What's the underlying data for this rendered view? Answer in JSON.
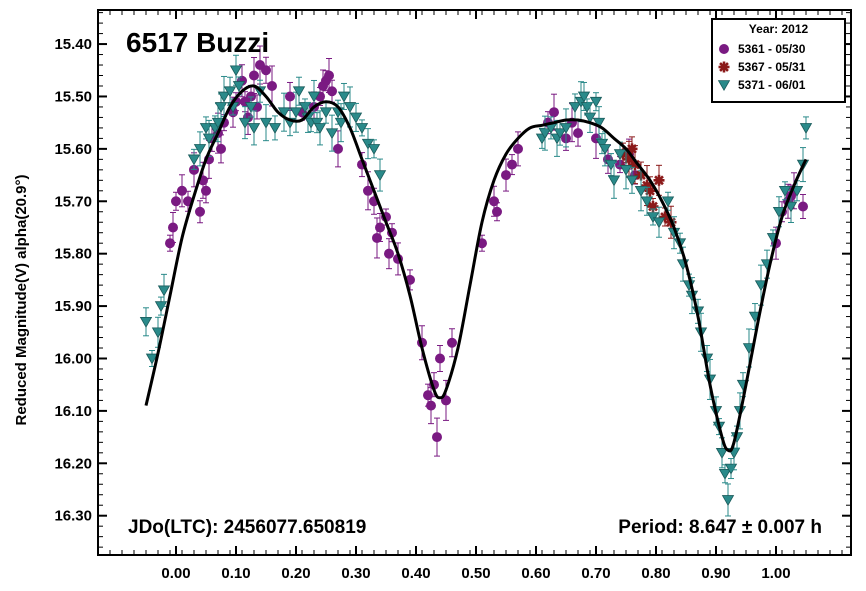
{
  "chart_data": {
    "type": "scatter",
    "title": "6517 Buzzi",
    "ylabel": "Reduced Magnitude(V) alpha(20.9°)",
    "xlabel": "",
    "xlim": [
      -0.13,
      1.125
    ],
    "ylim": [
      16.375,
      15.335
    ],
    "y_inverted": true,
    "grid": false,
    "x_ticks": [
      "0.00",
      "0.10",
      "0.20",
      "0.30",
      "0.40",
      "0.50",
      "0.60",
      "0.70",
      "0.80",
      "0.90",
      "1.00"
    ],
    "y_ticks": [
      "15.40",
      "15.50",
      "15.60",
      "15.70",
      "15.80",
      "15.90",
      "16.00",
      "16.10",
      "16.20",
      "16.30"
    ],
    "annotations": {
      "jdo": "JDo(LTC): 2456077.650819",
      "period": "Period: 8.647 ± 0.007 h"
    },
    "legend": {
      "placement": "top-right",
      "title": "Year: 2012",
      "entries": [
        {
          "label": "5361 - 05/30",
          "marker": "circle",
          "color": "#7a1a82"
        },
        {
          "label": "5367 - 05/31",
          "marker": "asterisk",
          "color": "#8b1a1a"
        },
        {
          "label": "5371 - 06/01",
          "marker": "triangle-down",
          "color": "#2a8a8a"
        }
      ]
    },
    "fit_curve": {
      "color": "#000000",
      "points": [
        [
          -0.05,
          16.09
        ],
        [
          -0.03,
          15.99
        ],
        [
          -0.01,
          15.88
        ],
        [
          0.01,
          15.77
        ],
        [
          0.03,
          15.69
        ],
        [
          0.05,
          15.62
        ],
        [
          0.07,
          15.57
        ],
        [
          0.09,
          15.52
        ],
        [
          0.11,
          15.49
        ],
        [
          0.13,
          15.48
        ],
        [
          0.15,
          15.5
        ],
        [
          0.17,
          15.53
        ],
        [
          0.19,
          15.545
        ],
        [
          0.21,
          15.545
        ],
        [
          0.23,
          15.52
        ],
        [
          0.25,
          15.51
        ],
        [
          0.27,
          15.52
        ],
        [
          0.29,
          15.56
        ],
        [
          0.31,
          15.62
        ],
        [
          0.33,
          15.68
        ],
        [
          0.35,
          15.74
        ],
        [
          0.37,
          15.8
        ],
        [
          0.39,
          15.88
        ],
        [
          0.41,
          15.98
        ],
        [
          0.43,
          16.06
        ],
        [
          0.44,
          16.075
        ],
        [
          0.45,
          16.06
        ],
        [
          0.47,
          15.98
        ],
        [
          0.49,
          15.86
        ],
        [
          0.51,
          15.74
        ],
        [
          0.53,
          15.66
        ],
        [
          0.55,
          15.61
        ],
        [
          0.57,
          15.58
        ],
        [
          0.59,
          15.56
        ],
        [
          0.61,
          15.555
        ],
        [
          0.63,
          15.55
        ],
        [
          0.65,
          15.545
        ],
        [
          0.67,
          15.545
        ],
        [
          0.69,
          15.55
        ],
        [
          0.71,
          15.56
        ],
        [
          0.73,
          15.58
        ],
        [
          0.75,
          15.6
        ],
        [
          0.77,
          15.63
        ],
        [
          0.79,
          15.66
        ],
        [
          0.81,
          15.7
        ],
        [
          0.83,
          15.75
        ],
        [
          0.85,
          15.82
        ],
        [
          0.87,
          15.92
        ],
        [
          0.89,
          16.05
        ],
        [
          0.91,
          16.15
        ],
        [
          0.92,
          16.175
        ],
        [
          0.93,
          16.16
        ],
        [
          0.95,
          16.05
        ],
        [
          0.97,
          15.93
        ],
        [
          0.99,
          15.82
        ],
        [
          1.01,
          15.73
        ],
        [
          1.03,
          15.67
        ],
        [
          1.05,
          15.62
        ]
      ]
    },
    "series": [
      {
        "name": "5361 - 05/30",
        "marker": "circle",
        "color": "#7a1a82",
        "points": [
          [
            -0.01,
            15.78
          ],
          [
            -0.005,
            15.75
          ],
          [
            0.0,
            15.7
          ],
          [
            0.01,
            15.68
          ],
          [
            0.02,
            15.7
          ],
          [
            0.03,
            15.64
          ],
          [
            0.04,
            15.72
          ],
          [
            0.045,
            15.66
          ],
          [
            0.05,
            15.68
          ],
          [
            0.055,
            15.62
          ],
          [
            0.06,
            15.58
          ],
          [
            0.07,
            15.57
          ],
          [
            0.075,
            15.6
          ],
          [
            0.08,
            15.55
          ],
          [
            0.095,
            15.53
          ],
          [
            0.1,
            15.51
          ],
          [
            0.11,
            15.47
          ],
          [
            0.115,
            15.51
          ],
          [
            0.12,
            15.54
          ],
          [
            0.125,
            15.5
          ],
          [
            0.13,
            15.46
          ],
          [
            0.135,
            15.52
          ],
          [
            0.14,
            15.44
          ],
          [
            0.15,
            15.45
          ],
          [
            0.16,
            15.48
          ],
          [
            0.19,
            15.5
          ],
          [
            0.21,
            15.53
          ],
          [
            0.23,
            15.52
          ],
          [
            0.24,
            15.5
          ],
          [
            0.245,
            15.48
          ],
          [
            0.25,
            15.47
          ],
          [
            0.255,
            15.46
          ],
          [
            0.26,
            15.49
          ],
          [
            0.27,
            15.6
          ],
          [
            0.31,
            15.63
          ],
          [
            0.32,
            15.68
          ],
          [
            0.33,
            15.7
          ],
          [
            0.335,
            15.77
          ],
          [
            0.34,
            15.75
          ],
          [
            0.35,
            15.73
          ],
          [
            0.355,
            15.8
          ],
          [
            0.36,
            15.76
          ],
          [
            0.37,
            15.81
          ],
          [
            0.39,
            15.85
          ],
          [
            0.41,
            15.97
          ],
          [
            0.42,
            16.07
          ],
          [
            0.425,
            16.09
          ],
          [
            0.43,
            16.05
          ],
          [
            0.435,
            16.15
          ],
          [
            0.44,
            16.0
          ],
          [
            0.45,
            16.08
          ],
          [
            0.46,
            15.97
          ],
          [
            0.51,
            15.78
          ],
          [
            0.53,
            15.7
          ],
          [
            0.535,
            15.72
          ],
          [
            0.55,
            15.65
          ],
          [
            0.56,
            15.63
          ],
          [
            0.57,
            15.6
          ],
          [
            0.62,
            15.55
          ],
          [
            0.63,
            15.53
          ],
          [
            0.65,
            15.58
          ],
          [
            0.66,
            15.55
          ],
          [
            0.67,
            15.57
          ],
          [
            0.7,
            15.58
          ],
          [
            0.72,
            15.62
          ],
          [
            0.74,
            15.63
          ],
          [
            0.755,
            15.61
          ],
          [
            0.765,
            15.65
          ],
          [
            1.0,
            15.78
          ],
          [
            1.01,
            15.72
          ],
          [
            1.02,
            15.7
          ],
          [
            1.025,
            15.69
          ],
          [
            1.03,
            15.68
          ],
          [
            1.045,
            15.71
          ]
        ]
      },
      {
        "name": "5367 - 05/31",
        "marker": "asterisk",
        "color": "#8b1a1a",
        "points": [
          [
            0.745,
            15.61
          ],
          [
            0.755,
            15.62
          ],
          [
            0.76,
            15.6
          ],
          [
            0.765,
            15.63
          ],
          [
            0.775,
            15.65
          ],
          [
            0.785,
            15.67
          ],
          [
            0.79,
            15.68
          ],
          [
            0.795,
            15.71
          ],
          [
            0.805,
            15.66
          ],
          [
            0.815,
            15.73
          ],
          [
            0.825,
            15.74
          ]
        ]
      },
      {
        "name": "5371 - 06/01",
        "marker": "triangle-down",
        "color": "#2a8a8a",
        "points": [
          [
            -0.05,
            15.93
          ],
          [
            -0.04,
            16.0
          ],
          [
            -0.03,
            15.95
          ],
          [
            -0.025,
            15.9
          ],
          [
            -0.02,
            15.87
          ],
          [
            0.03,
            15.62
          ],
          [
            0.04,
            15.6
          ],
          [
            0.05,
            15.56
          ],
          [
            0.055,
            15.58
          ],
          [
            0.065,
            15.56
          ],
          [
            0.07,
            15.55
          ],
          [
            0.075,
            15.52
          ],
          [
            0.08,
            15.5
          ],
          [
            0.09,
            15.49
          ],
          [
            0.095,
            15.52
          ],
          [
            0.1,
            15.45
          ],
          [
            0.105,
            15.48
          ],
          [
            0.115,
            15.55
          ],
          [
            0.125,
            15.52
          ],
          [
            0.13,
            15.56
          ],
          [
            0.14,
            15.49
          ],
          [
            0.15,
            15.55
          ],
          [
            0.165,
            15.56
          ],
          [
            0.18,
            15.53
          ],
          [
            0.19,
            15.55
          ],
          [
            0.2,
            15.53
          ],
          [
            0.205,
            15.49
          ],
          [
            0.215,
            15.52
          ],
          [
            0.22,
            15.54
          ],
          [
            0.225,
            15.55
          ],
          [
            0.23,
            15.5
          ],
          [
            0.235,
            15.55
          ],
          [
            0.24,
            15.56
          ],
          [
            0.25,
            15.53
          ],
          [
            0.26,
            15.57
          ],
          [
            0.27,
            15.53
          ],
          [
            0.275,
            15.55
          ],
          [
            0.28,
            15.5
          ],
          [
            0.29,
            15.52
          ],
          [
            0.3,
            15.54
          ],
          [
            0.31,
            15.56
          ],
          [
            0.32,
            15.59
          ],
          [
            0.33,
            15.6
          ],
          [
            0.34,
            15.65
          ],
          [
            0.61,
            15.58
          ],
          [
            0.615,
            15.57
          ],
          [
            0.625,
            15.56
          ],
          [
            0.635,
            15.58
          ],
          [
            0.64,
            15.57
          ],
          [
            0.65,
            15.56
          ],
          [
            0.665,
            15.52
          ],
          [
            0.675,
            15.51
          ],
          [
            0.68,
            15.5
          ],
          [
            0.685,
            15.52
          ],
          [
            0.69,
            15.54
          ],
          [
            0.7,
            15.51
          ],
          [
            0.705,
            15.55
          ],
          [
            0.71,
            15.59
          ],
          [
            0.715,
            15.6
          ],
          [
            0.725,
            15.63
          ],
          [
            0.73,
            15.66
          ],
          [
            0.74,
            15.61
          ],
          [
            0.75,
            15.64
          ],
          [
            0.76,
            15.66
          ],
          [
            0.775,
            15.68
          ],
          [
            0.785,
            15.7
          ],
          [
            0.795,
            15.73
          ],
          [
            0.805,
            15.74
          ],
          [
            0.82,
            15.7
          ],
          [
            0.83,
            15.76
          ],
          [
            0.84,
            15.78
          ],
          [
            0.845,
            15.82
          ],
          [
            0.855,
            15.86
          ],
          [
            0.86,
            15.88
          ],
          [
            0.87,
            15.91
          ],
          [
            0.875,
            15.95
          ],
          [
            0.885,
            16.0
          ],
          [
            0.89,
            16.04
          ],
          [
            0.9,
            16.1
          ],
          [
            0.905,
            16.13
          ],
          [
            0.91,
            16.18
          ],
          [
            0.915,
            16.22
          ],
          [
            0.92,
            16.27
          ],
          [
            0.925,
            16.21
          ],
          [
            0.93,
            16.18
          ],
          [
            0.935,
            16.15
          ],
          [
            0.94,
            16.1
          ],
          [
            0.945,
            16.05
          ],
          [
            0.955,
            15.98
          ],
          [
            0.965,
            15.92
          ],
          [
            0.975,
            15.86
          ],
          [
            0.985,
            15.82
          ],
          [
            0.995,
            15.77
          ],
          [
            1.005,
            15.72
          ],
          [
            1.015,
            15.68
          ],
          [
            1.025,
            15.71
          ],
          [
            1.035,
            15.68
          ],
          [
            1.045,
            15.63
          ],
          [
            1.05,
            15.56
          ]
        ]
      }
    ]
  }
}
